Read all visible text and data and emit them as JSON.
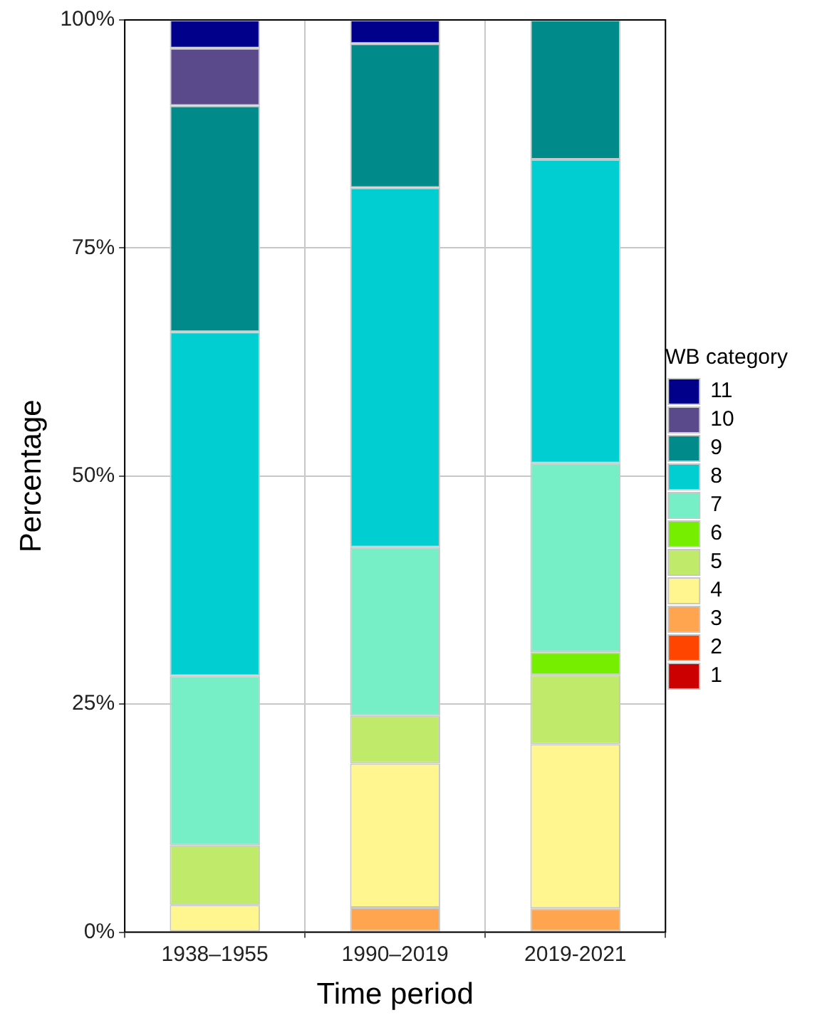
{
  "chart_data": {
    "type": "bar",
    "stacked": true,
    "xlabel": "Time period",
    "ylabel": "Percentage",
    "legend_title": "WB category",
    "categories": [
      "1938–1955",
      "1990–2019",
      "2019-2021"
    ],
    "series": [
      {
        "name": "1",
        "color": "#cd0000",
        "values": [
          0,
          0,
          0
        ]
      },
      {
        "name": "2",
        "color": "#ff4500",
        "values": [
          0,
          0,
          0
        ]
      },
      {
        "name": "3",
        "color": "#ffa54f",
        "values": [
          0,
          2.7,
          2.6
        ]
      },
      {
        "name": "4",
        "color": "#fff68f",
        "values": [
          3,
          15.8,
          18.0
        ]
      },
      {
        "name": "5",
        "color": "#c0eb6a",
        "values": [
          6.5,
          5.2,
          7.6
        ]
      },
      {
        "name": "6",
        "color": "#76ee00",
        "values": [
          0,
          0,
          2.5
        ]
      },
      {
        "name": "7",
        "color": "#76eec6",
        "values": [
          18.6,
          18.5,
          20.7
        ]
      },
      {
        "name": "8",
        "color": "#00ced1",
        "values": [
          37.7,
          39.4,
          33.3
        ]
      },
      {
        "name": "9",
        "color": "#008b8b",
        "values": [
          24.8,
          15.8,
          15.3
        ]
      },
      {
        "name": "10",
        "color": "#5b4a8b",
        "values": [
          6.3,
          0,
          0
        ]
      },
      {
        "name": "11",
        "color": "#00008b",
        "values": [
          3.1,
          2.6,
          0
        ]
      }
    ],
    "ylim": [
      0,
      100
    ],
    "yticks": [
      {
        "value": 0,
        "label": "0%"
      },
      {
        "value": 25,
        "label": "25%"
      },
      {
        "value": 50,
        "label": "50%"
      },
      {
        "value": 75,
        "label": "75%"
      },
      {
        "value": 100,
        "label": "100%"
      }
    ],
    "grid": true,
    "legend": "right"
  }
}
